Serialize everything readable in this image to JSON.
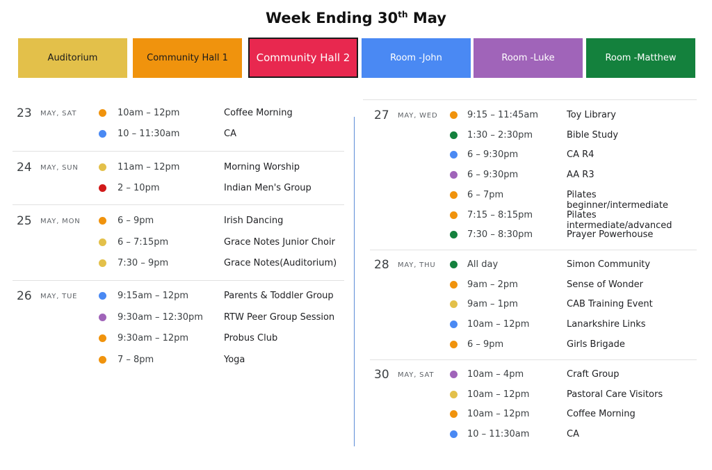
{
  "title": {
    "main": "Week Ending 30",
    "sup": "th",
    "end": " May"
  },
  "colors": {
    "auditorium": "#e3c04a",
    "hall1": "#f0930d",
    "hall2": "#e8284f",
    "john": "#4a89f3",
    "luke": "#a064b9",
    "matthew": "#14813d",
    "red": "#d11a1a"
  },
  "rooms": [
    {
      "label": "Auditorium",
      "color": "auditorium",
      "text": "#1a1a1a"
    },
    {
      "label": "Community  Hall 1",
      "color": "hall1",
      "text": "#1a1a1a"
    },
    {
      "label": "Community Hall 2",
      "color": "hall2",
      "text": "#ffffff"
    },
    {
      "label": "Room -John",
      "color": "john",
      "text": "#ffffff"
    },
    {
      "label": "Room -Luke",
      "color": "luke",
      "text": "#ffffff"
    },
    {
      "label": "Room -Matthew",
      "color": "matthew",
      "text": "#ffffff"
    }
  ],
  "days": [
    {
      "num": "23",
      "name": "MAY, SAT",
      "events": [
        {
          "time": "10am – 12pm",
          "name": "Coffee Morning",
          "color": "hall1"
        },
        {
          "time": "10 – 11:30am",
          "name": "CA",
          "color": "john"
        }
      ]
    },
    {
      "num": "24",
      "name": "MAY, SUN",
      "events": [
        {
          "time": "11am – 12pm",
          "name": "Morning Worship",
          "color": "auditorium"
        },
        {
          "time": "2 – 10pm",
          "name": "Indian Men's Group",
          "color": "red"
        }
      ]
    },
    {
      "num": "25",
      "name": "MAY, MON",
      "events": [
        {
          "time": "6 – 9pm",
          "name": "Irish Dancing",
          "color": "hall1"
        },
        {
          "time": "6 – 7:15pm",
          "name": "Grace Notes Junior Choir",
          "color": "auditorium"
        },
        {
          "time": "7:30 – 9pm",
          "name": "Grace Notes(Auditorium)",
          "color": "auditorium"
        }
      ]
    },
    {
      "num": "26",
      "name": "MAY, TUE",
      "events": [
        {
          "time": "9:15am – 12pm",
          "name": "Parents & Toddler Group",
          "color": "john"
        },
        {
          "time": "9:30am – 12:30pm",
          "name": "RTW Peer Group Session",
          "color": "luke"
        },
        {
          "time": "9:30am – 12pm",
          "name": "Probus Club",
          "color": "hall1"
        },
        {
          "time": "7 – 8pm",
          "name": "Yoga",
          "color": "hall1"
        }
      ]
    },
    {
      "num": "27",
      "name": "MAY, WED",
      "events": [
        {
          "time": "9:15 – 11:45am",
          "name": "Toy Library",
          "color": "hall1"
        },
        {
          "time": "1:30 – 2:30pm",
          "name": "Bible Study",
          "color": "matthew"
        },
        {
          "time": "6 – 9:30pm",
          "name": "CA R4",
          "color": "john"
        },
        {
          "time": "6 – 9:30pm",
          "name": "AA R3",
          "color": "luke"
        },
        {
          "time": "6 – 7pm",
          "name": "Pilates beginner/intermediate",
          "color": "hall1"
        },
        {
          "time": "7:15 – 8:15pm",
          "name": "Pilates intermediate/advanced",
          "color": "hall1"
        },
        {
          "time": "7:30 – 8:30pm",
          "name": "Prayer Powerhouse",
          "color": "matthew"
        }
      ]
    },
    {
      "num": "28",
      "name": "MAY, THU",
      "events": [
        {
          "time": "All day",
          "name": "Simon Community",
          "color": "matthew"
        },
        {
          "time": "9am – 2pm",
          "name": "Sense of Wonder",
          "color": "hall1"
        },
        {
          "time": "9am – 1pm",
          "name": "CAB Training Event",
          "color": "auditorium"
        },
        {
          "time": "10am – 12pm",
          "name": "Lanarkshire Links",
          "color": "john"
        },
        {
          "time": "6 – 9pm",
          "name": "Girls Brigade",
          "color": "hall1"
        }
      ]
    },
    {
      "num": "30",
      "name": "MAY, SAT",
      "events": [
        {
          "time": "10am – 4pm",
          "name": "Craft Group",
          "color": "luke"
        },
        {
          "time": "10am – 12pm",
          "name": "Pastoral Care Visitors",
          "color": "auditorium"
        },
        {
          "time": "10am – 12pm",
          "name": "Coffee Morning",
          "color": "hall1"
        },
        {
          "time": "10 – 11:30am",
          "name": "CA",
          "color": "john"
        }
      ]
    }
  ]
}
